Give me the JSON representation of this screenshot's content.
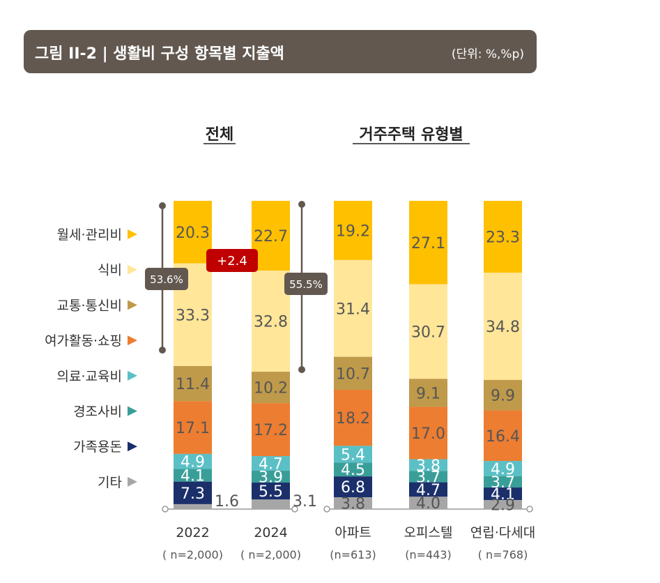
{
  "header": {
    "title": "그림 II-2 | 생활비 구성 항목별 지출액",
    "unit": "(단위: %,%p)"
  },
  "sections": {
    "overall": "전체",
    "by_housing": "거주주택 유형별"
  },
  "annotations": {
    "change": "+2.4",
    "bracket_2022": "53.6%",
    "bracket_2024": "55.5%"
  },
  "chart_data": {
    "type": "bar",
    "stacked": true,
    "percent": true,
    "categories": [
      "2022",
      "2024",
      "아파트",
      "오피스텔",
      "연립·다세대"
    ],
    "sample_sizes": [
      "( n=2,000)",
      "( n=2,000)",
      "(n=613)",
      "(n=443)",
      "( n=768)"
    ],
    "series": [
      {
        "name": "월세·관리비",
        "color": "#FFC000",
        "values": [
          20.3,
          22.7,
          19.2,
          27.1,
          23.3
        ]
      },
      {
        "name": "식비",
        "color": "#FFE699",
        "values": [
          33.3,
          32.8,
          31.4,
          30.7,
          34.8
        ]
      },
      {
        "name": "교통·통신비",
        "color": "#BF9A4A",
        "values": [
          11.4,
          10.2,
          10.7,
          9.1,
          9.9
        ]
      },
      {
        "name": "여가활동·쇼핑",
        "color": "#ED7D31",
        "values": [
          17.1,
          17.2,
          18.2,
          17.0,
          16.4
        ]
      },
      {
        "name": "의료·교육비",
        "color": "#5BC0C6",
        "values": [
          4.9,
          4.7,
          5.4,
          3.8,
          4.9
        ]
      },
      {
        "name": "경조사비",
        "color": "#3A9E98",
        "values": [
          4.1,
          3.9,
          4.5,
          3.7,
          3.7
        ]
      },
      {
        "name": "가족용돈",
        "color": "#1B2F6B",
        "values": [
          7.3,
          5.5,
          6.8,
          4.7,
          4.1
        ]
      },
      {
        "name": "기타",
        "color": "#A6A6A6",
        "values": [
          1.6,
          3.1,
          3.8,
          4.0,
          2.9
        ]
      }
    ]
  }
}
